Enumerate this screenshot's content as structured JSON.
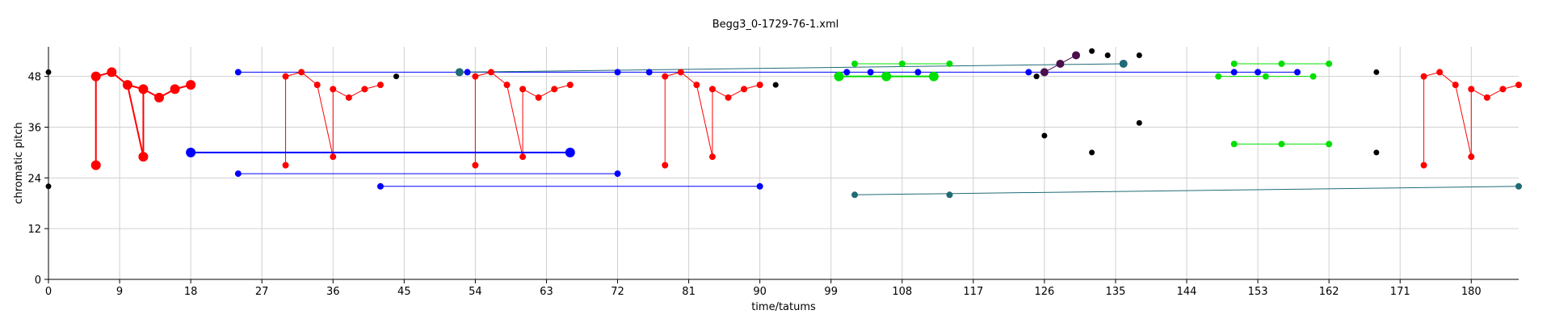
{
  "chart_data": {
    "type": "scatter",
    "title": "Begg3_0-1729-76-1.xml",
    "xlabel": "time/tatums",
    "ylabel": "chromatic pitch",
    "xlim": [
      0,
      186
    ],
    "ylim": [
      0,
      55
    ],
    "xticks": [
      0,
      9,
      18,
      27,
      36,
      45,
      54,
      63,
      72,
      81,
      90,
      99,
      108,
      117,
      126,
      135,
      144,
      153,
      162,
      171,
      180
    ],
    "yticks": [
      0,
      12,
      24,
      36,
      48
    ],
    "grid": true,
    "colors": {
      "red": "#ff0000",
      "blue": "#0000ff",
      "green": "#00e000",
      "teal": "#1f6b75",
      "purple": "#4b0f4b",
      "black": "#000000"
    },
    "series": [
      {
        "color": "red",
        "size": 6,
        "x": [
          6,
          6,
          8,
          10,
          12,
          12,
          14,
          16,
          18
        ],
        "y": [
          48,
          27,
          49,
          46,
          45,
          29,
          43,
          45,
          46
        ],
        "segments": [
          [
            6,
            48,
            6,
            27
          ],
          [
            6,
            48,
            8,
            49
          ],
          [
            8,
            49,
            10,
            46
          ],
          [
            10,
            46,
            12,
            29
          ],
          [
            10,
            46,
            12,
            45
          ],
          [
            12,
            45,
            12,
            29
          ],
          [
            12,
            45,
            14,
            43
          ],
          [
            14,
            43,
            16,
            45
          ],
          [
            16,
            45,
            18,
            46
          ]
        ]
      },
      {
        "color": "red",
        "size": 4,
        "x": [
          30,
          30,
          32,
          34,
          36,
          36,
          38,
          40,
          42
        ],
        "y": [
          48,
          27,
          49,
          46,
          45,
          29,
          43,
          45,
          46
        ],
        "segments": [
          [
            30,
            48,
            30,
            27
          ],
          [
            30,
            48,
            32,
            49
          ],
          [
            32,
            49,
            34,
            46
          ],
          [
            34,
            46,
            36,
            29
          ],
          [
            36,
            45,
            36,
            29
          ],
          [
            36,
            45,
            38,
            43
          ],
          [
            38,
            43,
            40,
            45
          ],
          [
            40,
            45,
            42,
            46
          ]
        ]
      },
      {
        "color": "red",
        "size": 4,
        "x": [
          54,
          54,
          56,
          58,
          60,
          60,
          62,
          64,
          66
        ],
        "y": [
          48,
          27,
          49,
          46,
          45,
          29,
          43,
          45,
          46
        ],
        "segments": [
          [
            54,
            48,
            54,
            27
          ],
          [
            54,
            48,
            56,
            49
          ],
          [
            56,
            49,
            58,
            46
          ],
          [
            58,
            46,
            60,
            29
          ],
          [
            60,
            45,
            60,
            29
          ],
          [
            60,
            45,
            62,
            43
          ],
          [
            62,
            43,
            64,
            45
          ],
          [
            64,
            45,
            66,
            46
          ]
        ]
      },
      {
        "color": "red",
        "size": 4,
        "x": [
          78,
          78,
          80,
          82,
          84,
          84,
          86,
          88,
          90
        ],
        "y": [
          48,
          27,
          49,
          46,
          45,
          29,
          43,
          45,
          46
        ],
        "segments": [
          [
            78,
            48,
            78,
            27
          ],
          [
            78,
            48,
            80,
            49
          ],
          [
            80,
            49,
            82,
            46
          ],
          [
            82,
            46,
            84,
            29
          ],
          [
            84,
            45,
            84,
            29
          ],
          [
            84,
            45,
            86,
            43
          ],
          [
            86,
            43,
            88,
            45
          ],
          [
            88,
            45,
            90,
            46
          ]
        ]
      },
      {
        "color": "red",
        "size": 4,
        "x": [
          174,
          174,
          176,
          178,
          180,
          180,
          182,
          184,
          186
        ],
        "y": [
          48,
          27,
          49,
          46,
          45,
          29,
          43,
          45,
          46
        ],
        "segments": [
          [
            174,
            48,
            174,
            27
          ],
          [
            174,
            48,
            176,
            49
          ],
          [
            176,
            49,
            178,
            46
          ],
          [
            178,
            46,
            180,
            29
          ],
          [
            180,
            45,
            180,
            29
          ],
          [
            180,
            45,
            182,
            43
          ],
          [
            182,
            43,
            184,
            45
          ],
          [
            184,
            45,
            186,
            46
          ]
        ]
      },
      {
        "color": "blue",
        "size": 4,
        "x": [
          24,
          53,
          72,
          76,
          101,
          104,
          110,
          124,
          150,
          153,
          158
        ],
        "y": [
          49,
          49,
          49,
          49,
          49,
          49,
          49,
          49,
          49,
          49,
          49
        ],
        "segments": [
          [
            24,
            49,
            158,
            49
          ]
        ]
      },
      {
        "color": "blue",
        "size": 6,
        "x": [
          18,
          66
        ],
        "y": [
          30,
          30
        ],
        "segments": [
          [
            18,
            30,
            66,
            30
          ]
        ]
      },
      {
        "color": "blue",
        "size": 4,
        "x": [
          24,
          72
        ],
        "y": [
          25,
          25
        ],
        "segments": [
          [
            24,
            25,
            72,
            25
          ]
        ]
      },
      {
        "color": "blue",
        "size": 4,
        "x": [
          42,
          90
        ],
        "y": [
          22,
          22
        ],
        "segments": [
          [
            42,
            22,
            90,
            22
          ]
        ]
      },
      {
        "color": "green",
        "size": 4,
        "x": [
          102,
          108,
          114
        ],
        "y": [
          51,
          51,
          51
        ],
        "segments": [
          [
            102,
            51,
            114,
            51
          ]
        ]
      },
      {
        "color": "green",
        "size": 6,
        "x": [
          100,
          106,
          112
        ],
        "y": [
          48,
          48,
          48
        ],
        "segments": [
          [
            100,
            48,
            112,
            48
          ]
        ]
      },
      {
        "color": "green",
        "size": 4,
        "x": [
          150,
          156,
          162
        ],
        "y": [
          51,
          51,
          51
        ],
        "segments": [
          [
            150,
            51,
            162,
            51
          ]
        ]
      },
      {
        "color": "green",
        "size": 4,
        "x": [
          148,
          154,
          160
        ],
        "y": [
          48,
          48,
          48
        ],
        "segments": [
          [
            148,
            48,
            160,
            48
          ]
        ]
      },
      {
        "color": "green",
        "size": 4,
        "x": [
          150,
          156,
          162
        ],
        "y": [
          32,
          32,
          32
        ],
        "segments": [
          [
            150,
            32,
            162,
            32
          ]
        ]
      },
      {
        "color": "teal",
        "size": 5,
        "x": [
          52,
          136
        ],
        "y": [
          49,
          51
        ],
        "segments": [
          [
            52,
            49,
            136,
            51
          ]
        ]
      },
      {
        "color": "teal",
        "size": 4,
        "x": [
          102,
          114,
          186
        ],
        "y": [
          20,
          20,
          22
        ],
        "segments": [
          [
            102,
            20,
            186,
            22
          ]
        ]
      },
      {
        "color": "purple",
        "size": 5,
        "x": [
          126,
          128,
          130
        ],
        "y": [
          49,
          51,
          53
        ],
        "segments": [
          [
            126,
            49,
            128,
            51
          ],
          [
            128,
            51,
            130,
            53
          ]
        ]
      },
      {
        "color": "black",
        "size": 3.5,
        "x": [
          0,
          0,
          44,
          92,
          125,
          126,
          132,
          132,
          134,
          138,
          138,
          168,
          168
        ],
        "y": [
          49,
          22,
          48,
          46,
          48,
          34,
          54,
          30,
          53,
          53,
          37,
          49,
          30
        ],
        "segments": []
      }
    ]
  }
}
